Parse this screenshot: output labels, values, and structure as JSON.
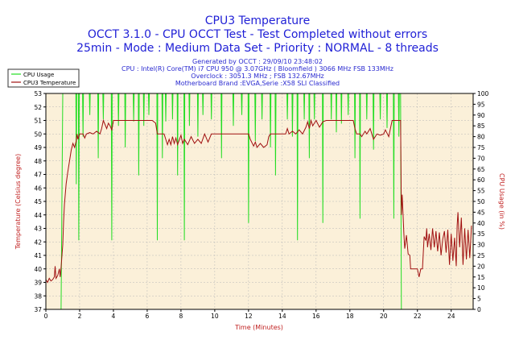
{
  "chart_data": {
    "type": "line",
    "title": "CPU3 Temperature",
    "subtitle_lines": [
      "OCCT 3.1.0 - CPU OCCT Test - Test Completed without errors",
      "25min - Mode : Medium Data Set - Priority : NORMAL - 8 threads"
    ],
    "info_lines": [
      "Generated by OCCT : 29/09/10 23:48:02",
      "CPU : Intel(R) Core(TM) i7 CPU 950 @ 3.07GHz ( Bloomfield ) 3066 MHz FSB 133MHz",
      "Overclock : 3051.3 MHz ; FSB 132.67MHz",
      "Motherboard Brand :EVGA,Serie :X58 SLI Classified"
    ],
    "xlabel": "Time (Minutes)",
    "ylabel_left": "Temperature (Celsius degree)",
    "ylabel_right": "CPU Usage (in %)",
    "xlim": [
      0,
      25.3
    ],
    "ylim_left": [
      37,
      53
    ],
    "ylim_right": [
      0,
      100
    ],
    "x_ticks": [
      0,
      2,
      4,
      6,
      8,
      10,
      12,
      14,
      16,
      18,
      20,
      22,
      24
    ],
    "y_ticks_left": [
      37,
      38,
      39,
      40,
      41,
      42,
      43,
      44,
      45,
      46,
      47,
      48,
      49,
      50,
      51,
      52,
      53
    ],
    "y_ticks_right": [
      0,
      5,
      10,
      15,
      20,
      25,
      30,
      35,
      40,
      45,
      50,
      55,
      60,
      65,
      70,
      75,
      80,
      85,
      90,
      95,
      100
    ],
    "grid": true,
    "legend_position": "top-left",
    "colors": {
      "plot_bg": "#fbf0d9",
      "cpu_usage": "#22dd22",
      "temperature": "#a01010",
      "axis_left": "#c02020",
      "axis_right": "#c02020",
      "title": "#1f1fd6"
    },
    "series": [
      {
        "name": "CPU Usage",
        "axis": "right",
        "base_points": [
          [
            0,
            0
          ],
          [
            0.9,
            0
          ],
          [
            1.0,
            100
          ],
          [
            21.0,
            100
          ],
          [
            21.05,
            0
          ],
          [
            25.3,
            0
          ]
        ],
        "dips": [
          [
            1.8,
            0.05,
            58
          ],
          [
            1.95,
            0.05,
            32
          ],
          [
            2.2,
            0.05,
            80
          ],
          [
            2.6,
            0.05,
            90
          ],
          [
            3.1,
            0.05,
            70
          ],
          [
            3.4,
            0.05,
            88
          ],
          [
            3.9,
            0.05,
            32
          ],
          [
            4.3,
            0.05,
            85
          ],
          [
            4.7,
            0.05,
            75
          ],
          [
            5.2,
            0.05,
            87
          ],
          [
            5.5,
            0.05,
            62
          ],
          [
            5.8,
            0.05,
            85
          ],
          [
            6.1,
            0.05,
            90
          ],
          [
            6.6,
            0.05,
            32
          ],
          [
            6.9,
            0.05,
            70
          ],
          [
            7.1,
            0.05,
            87
          ],
          [
            7.5,
            0.05,
            88
          ],
          [
            7.8,
            0.05,
            62
          ],
          [
            8.2,
            0.05,
            32
          ],
          [
            8.5,
            0.05,
            85
          ],
          [
            9.0,
            0.05,
            80
          ],
          [
            9.3,
            0.05,
            90
          ],
          [
            9.8,
            0.05,
            88
          ],
          [
            10.4,
            0.05,
            70
          ],
          [
            11.1,
            0.05,
            85
          ],
          [
            11.6,
            0.05,
            90
          ],
          [
            12.0,
            0.05,
            40
          ],
          [
            12.4,
            0.05,
            78
          ],
          [
            12.8,
            0.05,
            88
          ],
          [
            13.3,
            0.05,
            75
          ],
          [
            13.6,
            0.05,
            62
          ],
          [
            14.3,
            0.05,
            88
          ],
          [
            14.6,
            0.05,
            80
          ],
          [
            14.9,
            0.05,
            32
          ],
          [
            15.3,
            0.05,
            88
          ],
          [
            15.6,
            0.05,
            70
          ],
          [
            15.9,
            0.05,
            88
          ],
          [
            16.4,
            0.05,
            40
          ],
          [
            16.9,
            0.05,
            88
          ],
          [
            17.2,
            0.05,
            82
          ],
          [
            17.5,
            0.05,
            86
          ],
          [
            17.9,
            0.05,
            90
          ],
          [
            18.3,
            0.05,
            70
          ],
          [
            18.6,
            0.05,
            42
          ],
          [
            19.0,
            0.05,
            88
          ],
          [
            19.4,
            0.05,
            74
          ],
          [
            19.8,
            0.05,
            88
          ],
          [
            20.2,
            0.05,
            84
          ],
          [
            20.6,
            0.05,
            42
          ],
          [
            20.9,
            0.05,
            80
          ]
        ]
      },
      {
        "name": "CPU3 Temperature",
        "axis": "left",
        "points": [
          [
            0.0,
            39.2
          ],
          [
            0.1,
            39.0
          ],
          [
            0.2,
            39.3
          ],
          [
            0.3,
            39.1
          ],
          [
            0.4,
            39.2
          ],
          [
            0.5,
            39.4
          ],
          [
            0.55,
            40.2
          ],
          [
            0.6,
            39.3
          ],
          [
            0.7,
            39.5
          ],
          [
            0.8,
            40.0
          ],
          [
            0.85,
            39.4
          ],
          [
            0.9,
            40.1
          ],
          [
            1.0,
            41.8
          ],
          [
            1.05,
            43.5
          ],
          [
            1.1,
            44.8
          ],
          [
            1.2,
            46.3
          ],
          [
            1.3,
            47.2
          ],
          [
            1.4,
            48.0
          ],
          [
            1.5,
            48.8
          ],
          [
            1.6,
            49.3
          ],
          [
            1.7,
            49.0
          ],
          [
            1.8,
            49.5
          ],
          [
            1.85,
            50.0
          ],
          [
            1.9,
            49.6
          ],
          [
            2.0,
            50.0
          ],
          [
            2.2,
            50.0
          ],
          [
            2.3,
            49.7
          ],
          [
            2.4,
            50.0
          ],
          [
            2.6,
            50.1
          ],
          [
            2.8,
            50.0
          ],
          [
            3.0,
            50.2
          ],
          [
            3.2,
            50.0
          ],
          [
            3.3,
            50.4
          ],
          [
            3.4,
            51.0
          ],
          [
            3.5,
            50.7
          ],
          [
            3.6,
            50.4
          ],
          [
            3.7,
            50.8
          ],
          [
            3.8,
            50.6
          ],
          [
            3.9,
            50.3
          ],
          [
            4.0,
            51.0
          ],
          [
            4.2,
            51.0
          ],
          [
            4.5,
            51.0
          ],
          [
            5.0,
            51.0
          ],
          [
            5.5,
            51.0
          ],
          [
            6.0,
            51.0
          ],
          [
            6.3,
            51.0
          ],
          [
            6.5,
            50.8
          ],
          [
            6.6,
            50.0
          ],
          [
            7.0,
            50.0
          ],
          [
            7.1,
            49.6
          ],
          [
            7.2,
            49.2
          ],
          [
            7.3,
            49.6
          ],
          [
            7.4,
            49.2
          ],
          [
            7.5,
            49.8
          ],
          [
            7.6,
            49.3
          ],
          [
            7.7,
            49.7
          ],
          [
            7.8,
            49.2
          ],
          [
            8.0,
            49.9
          ],
          [
            8.1,
            49.3
          ],
          [
            8.2,
            49.6
          ],
          [
            8.4,
            49.2
          ],
          [
            8.6,
            49.8
          ],
          [
            8.8,
            49.3
          ],
          [
            9.0,
            49.6
          ],
          [
            9.2,
            49.3
          ],
          [
            9.4,
            50.0
          ],
          [
            9.6,
            49.4
          ],
          [
            9.8,
            50.0
          ],
          [
            10.0,
            50.0
          ],
          [
            10.5,
            50.0
          ],
          [
            11.0,
            50.0
          ],
          [
            11.5,
            50.0
          ],
          [
            12.0,
            50.0
          ],
          [
            12.1,
            49.6
          ],
          [
            12.3,
            49.1
          ],
          [
            12.4,
            49.4
          ],
          [
            12.5,
            49.0
          ],
          [
            12.7,
            49.3
          ],
          [
            12.9,
            49.0
          ],
          [
            13.1,
            49.2
          ],
          [
            13.2,
            49.8
          ],
          [
            13.3,
            50.0
          ],
          [
            13.5,
            50.0
          ],
          [
            14.0,
            50.0
          ],
          [
            14.2,
            50.0
          ],
          [
            14.3,
            50.4
          ],
          [
            14.4,
            50.0
          ],
          [
            14.6,
            50.2
          ],
          [
            14.8,
            50.0
          ],
          [
            15.0,
            50.3
          ],
          [
            15.2,
            50.0
          ],
          [
            15.4,
            50.5
          ],
          [
            15.5,
            50.9
          ],
          [
            15.6,
            50.4
          ],
          [
            15.7,
            51.0
          ],
          [
            15.8,
            50.6
          ],
          [
            16.0,
            51.0
          ],
          [
            16.2,
            50.5
          ],
          [
            16.4,
            50.9
          ],
          [
            16.6,
            51.0
          ],
          [
            17.0,
            51.0
          ],
          [
            17.5,
            51.0
          ],
          [
            18.0,
            51.0
          ],
          [
            18.2,
            51.0
          ],
          [
            18.3,
            50.4
          ],
          [
            18.4,
            50.0
          ],
          [
            18.6,
            50.0
          ],
          [
            18.7,
            49.8
          ],
          [
            18.9,
            50.2
          ],
          [
            19.0,
            50.0
          ],
          [
            19.2,
            50.4
          ],
          [
            19.4,
            49.6
          ],
          [
            19.6,
            50.0
          ],
          [
            19.8,
            49.9
          ],
          [
            20.0,
            50.0
          ],
          [
            20.1,
            50.3
          ],
          [
            20.3,
            49.8
          ],
          [
            20.5,
            51.0
          ],
          [
            20.7,
            51.0
          ],
          [
            21.0,
            51.0
          ],
          [
            21.05,
            44.0
          ],
          [
            21.1,
            45.5
          ],
          [
            21.15,
            44.0
          ],
          [
            21.2,
            42.6
          ],
          [
            21.25,
            41.5
          ],
          [
            21.35,
            42.5
          ],
          [
            21.45,
            41.1
          ],
          [
            21.55,
            41.0
          ],
          [
            21.6,
            40.0
          ],
          [
            21.8,
            40.0
          ],
          [
            22.0,
            40.0
          ],
          [
            22.1,
            39.4
          ],
          [
            22.2,
            40.0
          ],
          [
            22.3,
            40.0
          ],
          [
            22.4,
            42.4
          ],
          [
            22.5,
            42.1
          ],
          [
            22.55,
            43.0
          ],
          [
            22.6,
            41.6
          ],
          [
            22.7,
            42.6
          ],
          [
            22.8,
            41.4
          ],
          [
            22.9,
            43.0
          ],
          [
            23.0,
            41.6
          ],
          [
            23.1,
            42.8
          ],
          [
            23.2,
            41.3
          ],
          [
            23.3,
            42.7
          ],
          [
            23.4,
            41.0
          ],
          [
            23.5,
            42.2
          ],
          [
            23.6,
            42.8
          ],
          [
            23.7,
            41.2
          ],
          [
            23.8,
            42.9
          ],
          [
            23.9,
            40.3
          ],
          [
            24.0,
            42.6
          ],
          [
            24.1,
            40.6
          ],
          [
            24.2,
            42.3
          ],
          [
            24.3,
            40.2
          ],
          [
            24.35,
            43.2
          ],
          [
            24.4,
            44.2
          ],
          [
            24.5,
            41.6
          ],
          [
            24.6,
            43.8
          ],
          [
            24.7,
            40.3
          ],
          [
            24.8,
            43.0
          ],
          [
            24.9,
            40.7
          ],
          [
            25.0,
            42.9
          ],
          [
            25.1,
            40.8
          ],
          [
            25.2,
            43.2
          ]
        ]
      }
    ]
  }
}
